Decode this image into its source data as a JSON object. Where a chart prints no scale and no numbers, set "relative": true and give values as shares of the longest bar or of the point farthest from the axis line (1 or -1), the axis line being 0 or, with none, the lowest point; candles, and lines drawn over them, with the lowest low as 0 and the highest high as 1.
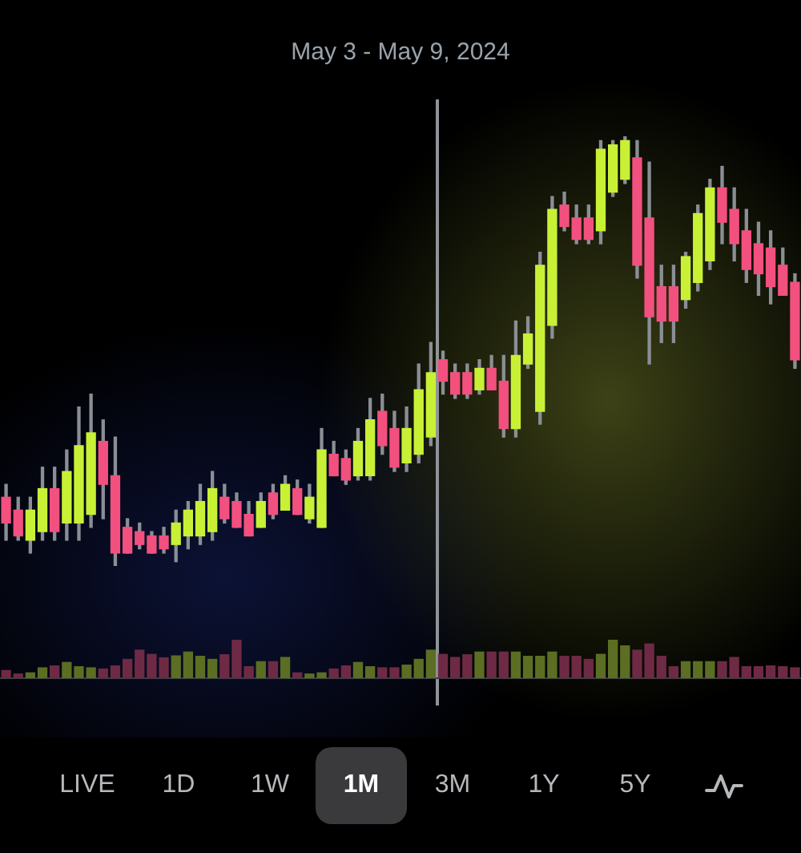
{
  "chart_data": [
    {
      "type": "candlestick",
      "title": "May 3 - May 9, 2024",
      "relative": true,
      "categories": [
        null,
        null,
        null,
        null,
        null,
        null,
        null,
        null,
        null,
        null,
        null,
        null,
        null,
        null,
        null,
        null,
        null,
        null,
        null,
        null,
        null,
        null,
        null,
        null,
        null,
        null,
        null,
        null,
        null,
        null,
        null,
        null,
        null,
        null,
        null,
        null,
        null,
        null,
        null,
        null,
        null,
        null,
        null,
        null,
        null,
        null,
        null,
        null,
        null,
        null,
        null,
        null,
        null,
        null,
        null,
        null,
        null,
        null,
        null,
        null,
        null,
        null,
        null,
        null,
        null,
        null
      ],
      "ohlc": [
        [
          0.16,
          0.19,
          0.06,
          0.1
        ],
        [
          0.13,
          0.16,
          0.06,
          0.07
        ],
        [
          0.06,
          0.16,
          0.03,
          0.13
        ],
        [
          0.08,
          0.23,
          0.06,
          0.18
        ],
        [
          0.18,
          0.23,
          0.06,
          0.08
        ],
        [
          0.1,
          0.27,
          0.06,
          0.22
        ],
        [
          0.1,
          0.37,
          0.06,
          0.28
        ],
        [
          0.12,
          0.4,
          0.09,
          0.31
        ],
        [
          0.29,
          0.34,
          0.11,
          0.19
        ],
        [
          0.21,
          0.3,
          0,
          0.03
        ],
        [
          0.09,
          0.11,
          0.03,
          0.03
        ],
        [
          0.08,
          0.1,
          0.04,
          0.05
        ],
        [
          0.07,
          0.08,
          0.03,
          0.03
        ],
        [
          0.07,
          0.09,
          0.03,
          0.04
        ],
        [
          0.05,
          0.13,
          0.01,
          0.1
        ],
        [
          0.07,
          0.15,
          0.04,
          0.13
        ],
        [
          0.07,
          0.19,
          0.05,
          0.15
        ],
        [
          0.08,
          0.22,
          0.06,
          0.18
        ],
        [
          0.16,
          0.19,
          0.1,
          0.11
        ],
        [
          0.15,
          0.17,
          0.09,
          0.09
        ],
        [
          0.12,
          0.15,
          0.07,
          0.07
        ],
        [
          0.09,
          0.17,
          0.09,
          0.15
        ],
        [
          0.17,
          0.19,
          0.11,
          0.12
        ],
        [
          0.13,
          0.21,
          0.13,
          0.19
        ],
        [
          0.18,
          0.2,
          0.12,
          0.12
        ],
        [
          0.11,
          0.19,
          0.1,
          0.16
        ],
        [
          0.09,
          0.32,
          0.09,
          0.27
        ],
        [
          0.26,
          0.29,
          0.21,
          0.21
        ],
        [
          0.25,
          0.27,
          0.19,
          0.2
        ],
        [
          0.21,
          0.32,
          0.2,
          0.29
        ],
        [
          0.21,
          0.39,
          0.2,
          0.34
        ],
        [
          0.36,
          0.4,
          0.26,
          0.28
        ],
        [
          0.32,
          0.36,
          0.22,
          0.23
        ],
        [
          0.24,
          0.37,
          0.22,
          0.32
        ],
        [
          0.26,
          0.47,
          0.24,
          0.41
        ],
        [
          0.3,
          0.52,
          0.28,
          0.45
        ],
        [
          0.48,
          0.5,
          0.4,
          0.43
        ],
        [
          0.45,
          0.47,
          0.39,
          0.4
        ],
        [
          0.45,
          0.47,
          0.39,
          0.4
        ],
        [
          0.41,
          0.48,
          0.4,
          0.46
        ],
        [
          0.46,
          0.49,
          0.41,
          0.41
        ],
        [
          0.43,
          0.49,
          0.3,
          0.32
        ],
        [
          0.32,
          0.57,
          0.3,
          0.49
        ],
        [
          0.47,
          0.58,
          0.46,
          0.54
        ],
        [
          0.36,
          0.73,
          0.33,
          0.7
        ],
        [
          0.56,
          0.86,
          0.53,
          0.83
        ],
        [
          0.84,
          0.87,
          0.78,
          0.79
        ],
        [
          0.81,
          0.84,
          0.75,
          0.76
        ],
        [
          0.81,
          0.84,
          0.75,
          0.76
        ],
        [
          0.78,
          0.99,
          0.75,
          0.97
        ],
        [
          0.87,
          0.99,
          0.86,
          0.98
        ],
        [
          0.9,
          1,
          0.89,
          0.99
        ],
        [
          0.95,
          0.99,
          0.67,
          0.7
        ],
        [
          0.81,
          0.94,
          0.47,
          0.58
        ],
        [
          0.65,
          0.7,
          0.52,
          0.57
        ],
        [
          0.65,
          0.7,
          0.52,
          0.57
        ],
        [
          0.62,
          0.73,
          0.6,
          0.72
        ],
        [
          0.66,
          0.84,
          0.64,
          0.82
        ],
        [
          0.71,
          0.9,
          0.69,
          0.88
        ],
        [
          0.88,
          0.93,
          0.75,
          0.8
        ],
        [
          0.83,
          0.88,
          0.71,
          0.75
        ],
        [
          0.78,
          0.83,
          0.66,
          0.69
        ],
        [
          0.75,
          0.8,
          0.63,
          0.68
        ],
        [
          0.74,
          0.78,
          0.61,
          0.65
        ],
        [
          0.7,
          0.74,
          0.63,
          0.63
        ],
        [
          0.66,
          0.68,
          0.46,
          0.48
        ]
      ],
      "colors": [
        "#f2507f",
        "#f2507f",
        "#c8f135",
        "#c8f135",
        "#f2507f",
        "#c8f135",
        "#c8f135",
        "#c8f135",
        "#f2507f",
        "#f2507f",
        "#f2507f",
        "#f2507f",
        "#f2507f",
        "#f2507f",
        "#c8f135",
        "#c8f135",
        "#c8f135",
        "#c8f135",
        "#f2507f",
        "#f2507f",
        "#f2507f",
        "#c8f135",
        "#f2507f",
        "#c8f135",
        "#f2507f",
        "#c8f135",
        "#c8f135",
        "#f2507f",
        "#f2507f",
        "#c8f135",
        "#c8f135",
        "#f2507f",
        "#f2507f",
        "#c8f135",
        "#c8f135",
        "#c8f135",
        "#f2507f",
        "#f2507f",
        "#f2507f",
        "#c8f135",
        "#f2507f",
        "#f2507f",
        "#c8f135",
        "#c8f135",
        "#c8f135",
        "#c8f135",
        "#f2507f",
        "#f2507f",
        "#f2507f",
        "#c8f135",
        "#c8f135",
        "#c8f135",
        "#f2507f",
        "#f2507f",
        "#f2507f",
        "#f2507f",
        "#c8f135",
        "#c8f135",
        "#c8f135",
        "#f2507f",
        "#f2507f",
        "#f2507f",
        "#f2507f",
        "#f2507f",
        "#f2507f",
        "#f2507f"
      ],
      "annotations": [
        "LIVE",
        "1D",
        "1W",
        "1M",
        "3M",
        "1Y",
        "5Y"
      ]
    },
    {
      "type": "bar",
      "relative": true,
      "categories": [
        null,
        null,
        null,
        null,
        null,
        null,
        null,
        null,
        null,
        null,
        null,
        null,
        null,
        null,
        null,
        null,
        null,
        null,
        null,
        null,
        null,
        null,
        null,
        null,
        null,
        null,
        null,
        null,
        null,
        null,
        null,
        null,
        null,
        null,
        null,
        null,
        null,
        null,
        null,
        null,
        null,
        null,
        null,
        null,
        null,
        null,
        null,
        null,
        null,
        null,
        null,
        null,
        null,
        null,
        null,
        null,
        null,
        null,
        null,
        null,
        null,
        null,
        null,
        null,
        null,
        null
      ],
      "values": [
        0.2,
        0.11,
        0.14,
        0.27,
        0.32,
        0.41,
        0.3,
        0.27,
        0.24,
        0.32,
        0.49,
        0.73,
        0.62,
        0.53,
        0.58,
        0.68,
        0.57,
        0.49,
        0.61,
        1,
        0.3,
        0.43,
        0.43,
        0.54,
        0.14,
        0.11,
        0.14,
        0.24,
        0.32,
        0.41,
        0.3,
        0.27,
        0.27,
        0.34,
        0.49,
        0.73,
        0.62,
        0.54,
        0.61,
        0.68,
        0.68,
        0.68,
        0.68,
        0.57,
        0.57,
        0.68,
        0.57,
        0.57,
        0.49,
        0.62,
        1,
        0.84,
        0.73,
        0.89,
        0.57,
        0.3,
        0.43,
        0.43,
        0.43,
        0.43,
        0.54,
        0.3,
        0.3,
        0.32,
        0.3,
        0.27
      ],
      "colors": [
        "#6e2a44",
        "#6e2a44",
        "#5b6e23",
        "#5b6e23",
        "#6e2a44",
        "#5b6e23",
        "#5b6e23",
        "#5b6e23",
        "#6e2a44",
        "#6e2a44",
        "#6e2a44",
        "#6e2a44",
        "#6e2a44",
        "#6e2a44",
        "#5b6e23",
        "#5b6e23",
        "#5b6e23",
        "#5b6e23",
        "#6e2a44",
        "#6e2a44",
        "#6e2a44",
        "#5b6e23",
        "#6e2a44",
        "#5b6e23",
        "#6e2a44",
        "#5b6e23",
        "#5b6e23",
        "#6e2a44",
        "#6e2a44",
        "#5b6e23",
        "#5b6e23",
        "#6e2a44",
        "#6e2a44",
        "#5b6e23",
        "#5b6e23",
        "#5b6e23",
        "#6e2a44",
        "#6e2a44",
        "#6e2a44",
        "#5b6e23",
        "#6e2a44",
        "#6e2a44",
        "#5b6e23",
        "#5b6e23",
        "#5b6e23",
        "#5b6e23",
        "#6e2a44",
        "#6e2a44",
        "#6e2a44",
        "#5b6e23",
        "#5b6e23",
        "#5b6e23",
        "#6e2a44",
        "#6e2a44",
        "#6e2a44",
        "#6e2a44",
        "#5b6e23",
        "#5b6e23",
        "#5b6e23",
        "#6e2a44",
        "#6e2a44",
        "#6e2a44",
        "#6e2a44",
        "#6e2a44",
        "#6e2a44",
        "#6e2a44"
      ]
    }
  ]
}
